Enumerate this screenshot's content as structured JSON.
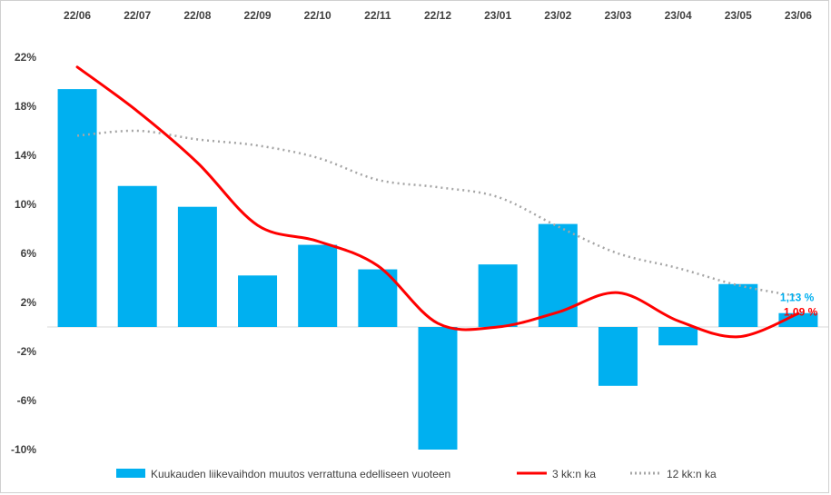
{
  "chart_data": {
    "type": "bar",
    "categories": [
      "22/06",
      "22/07",
      "22/08",
      "22/09",
      "22/10",
      "22/11",
      "22/12",
      "23/01",
      "23/02",
      "23/03",
      "23/04",
      "23/05",
      "23/06"
    ],
    "ylim": [
      -10,
      22
    ],
    "yticks": [
      22,
      18,
      14,
      10,
      6,
      2,
      -2,
      -6,
      -10
    ],
    "ytick_labels": [
      "22%",
      "18%",
      "14%",
      "10%",
      "6%",
      "2%",
      "-2%",
      "-6%",
      "-10%"
    ],
    "grid": false,
    "legend_position": "bottom",
    "series": [
      {
        "name": "Kuukauden liikevaihdon muutos verrattuna edelliseen vuoteen",
        "type": "bar",
        "color": "#00B0F0",
        "values": [
          19.4,
          11.5,
          9.8,
          4.2,
          6.7,
          4.7,
          -10.0,
          5.1,
          8.4,
          -4.8,
          -1.5,
          3.5,
          1.13
        ]
      },
      {
        "name": "3 kk:n ka",
        "type": "line",
        "style": "solid",
        "color": "#FF0000",
        "values": [
          21.2,
          17.6,
          13.4,
          8.3,
          7.0,
          5.0,
          0.3,
          0.0,
          1.2,
          2.8,
          0.5,
          -0.8,
          1.09
        ]
      },
      {
        "name": "12 kk:n ka",
        "type": "line",
        "style": "dotted",
        "color": "#A6A6A6",
        "values": [
          15.6,
          16.0,
          15.3,
          14.8,
          13.8,
          12.0,
          11.4,
          10.6,
          8.2,
          6.0,
          4.8,
          3.4,
          2.5
        ]
      }
    ],
    "annotations": [
      {
        "text": "1,13 %",
        "color": "#00B0F0",
        "series": 0,
        "index": 12
      },
      {
        "text": "1,09 %",
        "color": "#FF0000",
        "series": 1,
        "index": 12
      }
    ]
  }
}
